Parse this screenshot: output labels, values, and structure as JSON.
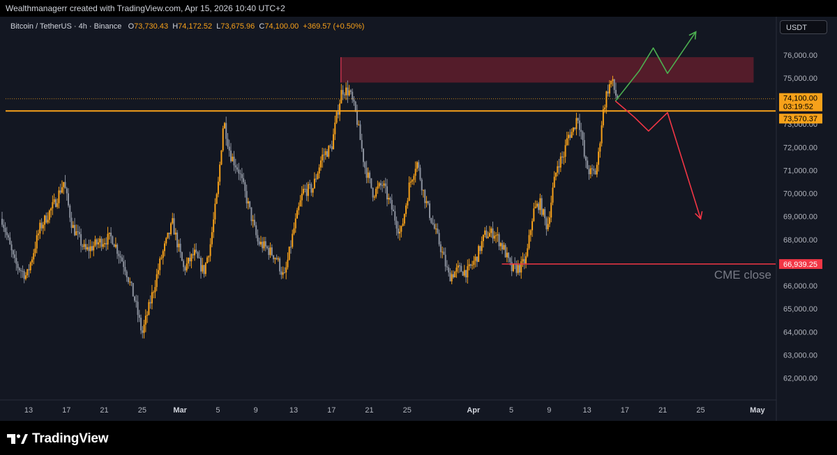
{
  "header": {
    "attribution": "Wealthmanagerr created with TradingView.com, Apr 15, 2026 10:40 UTC+2"
  },
  "legend": {
    "symbol": "Bitcoin / TetherUS · 4h · Binance",
    "o_label": "O",
    "o_value": "73,730.43",
    "h_label": "H",
    "h_value": "74,172.52",
    "l_label": "L",
    "l_value": "73,675.96",
    "c_label": "C",
    "c_value": "74,100.00",
    "change": "+369.57 (+0.50%)"
  },
  "currency_button": "USDT",
  "footer": {
    "brand": "TradingView"
  },
  "colors": {
    "background": "#131722",
    "up_candle": "#f7a11a",
    "down_candle": "#8c929e",
    "resistance_line": "#f7a11a",
    "supply_zone": "#6b1f2d",
    "cme_line": "#f23645",
    "bull_path": "#4caf50",
    "bear_path": "#f23645"
  },
  "chart_data": {
    "type": "candlestick",
    "symbol": "Bitcoin / TetherUS",
    "interval": "4h",
    "exchange": "Binance",
    "y_axis": {
      "range": [
        61400,
        76800
      ],
      "ticks": [
        62000,
        63000,
        64000,
        65000,
        66000,
        67000,
        68000,
        69000,
        70000,
        71000,
        72000,
        73000,
        74000,
        75000,
        76000
      ],
      "tick_labels": [
        "62,000.00",
        "63,000.00",
        "64,000.00",
        "65,000.00",
        "66,000.00",
        "67,000.00",
        "68,000.00",
        "69,000.00",
        "70,000.00",
        "71,000.00",
        "72,000.00",
        "73,000.00",
        "74,000.00",
        "75,000.00",
        "76,000.00"
      ]
    },
    "x_axis": {
      "ticks": [
        {
          "label": "13",
          "day": 13,
          "bold": false
        },
        {
          "label": "17",
          "day": 17,
          "bold": false
        },
        {
          "label": "21",
          "day": 21,
          "bold": false
        },
        {
          "label": "25",
          "day": 25,
          "bold": false
        },
        {
          "label": "Mar",
          "day": 29,
          "bold": true
        },
        {
          "label": "5",
          "day": 33,
          "bold": false
        },
        {
          "label": "9",
          "day": 37,
          "bold": false
        },
        {
          "label": "13",
          "day": 41,
          "bold": false
        },
        {
          "label": "17",
          "day": 45,
          "bold": false
        },
        {
          "label": "21",
          "day": 49,
          "bold": false
        },
        {
          "label": "25",
          "day": 53,
          "bold": false
        },
        {
          "label": "Apr",
          "day": 60,
          "bold": true
        },
        {
          "label": "5",
          "day": 64,
          "bold": false
        },
        {
          "label": "9",
          "day": 68,
          "bold": false
        },
        {
          "label": "13",
          "day": 72,
          "bold": false
        },
        {
          "label": "17",
          "day": 76,
          "bold": false
        },
        {
          "label": "21",
          "day": 80,
          "bold": false
        },
        {
          "label": "25",
          "day": 84,
          "bold": false
        },
        {
          "label": "May",
          "day": 90,
          "bold": true
        }
      ]
    },
    "price_path": [
      [
        10.2,
        68900
      ],
      [
        11.5,
        67000
      ],
      [
        12.8,
        66400
      ],
      [
        14.2,
        68500
      ],
      [
        15.8,
        69600
      ],
      [
        16.7,
        70500
      ],
      [
        17.6,
        68600
      ],
      [
        19.0,
        67500
      ],
      [
        20.5,
        67900
      ],
      [
        21.8,
        68100
      ],
      [
        23.2,
        66800
      ],
      [
        24.2,
        65400
      ],
      [
        25.0,
        63900
      ],
      [
        25.8,
        65200
      ],
      [
        27.0,
        67200
      ],
      [
        28.2,
        68700
      ],
      [
        29.4,
        66700
      ],
      [
        30.5,
        67400
      ],
      [
        31.5,
        66600
      ],
      [
        32.2,
        67800
      ],
      [
        33.0,
        70200
      ],
      [
        33.6,
        73200
      ],
      [
        34.3,
        71700
      ],
      [
        35.2,
        71000
      ],
      [
        36.2,
        69500
      ],
      [
        37.2,
        67900
      ],
      [
        38.2,
        67600
      ],
      [
        39.2,
        67200
      ],
      [
        40.0,
        66300
      ],
      [
        41.0,
        68400
      ],
      [
        42.0,
        70100
      ],
      [
        43.0,
        70200
      ],
      [
        44.0,
        71600
      ],
      [
        45.0,
        72000
      ],
      [
        45.5,
        73200
      ],
      [
        46.1,
        74500
      ],
      [
        46.9,
        74400
      ],
      [
        47.6,
        73400
      ],
      [
        48.5,
        71200
      ],
      [
        49.4,
        70000
      ],
      [
        50.4,
        70400
      ],
      [
        51.4,
        69300
      ],
      [
        52.3,
        68200
      ],
      [
        53.2,
        70300
      ],
      [
        54.0,
        71400
      ],
      [
        54.8,
        69900
      ],
      [
        55.6,
        68800
      ],
      [
        56.5,
        67700
      ],
      [
        57.4,
        66400
      ],
      [
        58.4,
        66700
      ],
      [
        59.4,
        66600
      ],
      [
        60.3,
        67200
      ],
      [
        61.2,
        68200
      ],
      [
        62.2,
        68300
      ],
      [
        63.2,
        67600
      ],
      [
        64.0,
        66700
      ],
      [
        65.0,
        66800
      ],
      [
        65.6,
        67200
      ],
      [
        66.3,
        69200
      ],
      [
        67.0,
        69600
      ],
      [
        67.8,
        68500
      ],
      [
        68.4,
        70200
      ],
      [
        68.9,
        71300
      ],
      [
        69.5,
        71600
      ],
      [
        70.0,
        72500
      ],
      [
        70.5,
        72700
      ],
      [
        71.0,
        73400
      ],
      [
        71.4,
        72600
      ],
      [
        71.8,
        71300
      ],
      [
        72.3,
        70900
      ],
      [
        72.9,
        70900
      ],
      [
        73.2,
        71600
      ],
      [
        73.6,
        73300
      ],
      [
        74.1,
        74400
      ],
      [
        74.6,
        74900
      ],
      [
        75.0,
        74300
      ],
      [
        75.3,
        74100
      ]
    ],
    "supply_zone": {
      "day_start": 46.0,
      "day_end": 89.6,
      "price_low": 74800,
      "price_high": 75900
    },
    "horizontal_levels": [
      {
        "name": "resistance",
        "price": 73570.37,
        "label": "73,570.37"
      },
      {
        "name": "cme_close",
        "price": 66939.25,
        "label": "66,939.25",
        "day_start": 63.0,
        "annotation": "CME close"
      }
    ],
    "last_price": {
      "price": 74100.0,
      "label": "74,100.00",
      "countdown": "03:19:52"
    },
    "bull_scenario": [
      [
        75.0,
        74000
      ],
      [
        77.5,
        75300
      ],
      [
        79.0,
        76300
      ],
      [
        80.5,
        75200
      ],
      [
        83.5,
        77000
      ]
    ],
    "bear_scenario": [
      [
        75.0,
        74000
      ],
      [
        77.0,
        73300
      ],
      [
        78.5,
        72700
      ],
      [
        80.5,
        73500
      ],
      [
        84.0,
        68900
      ]
    ]
  }
}
